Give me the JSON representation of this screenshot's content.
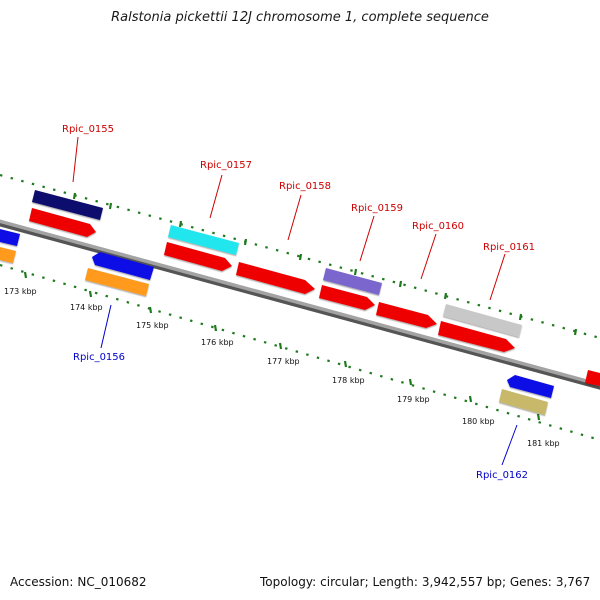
{
  "title": "Ralstonia pickettii 12J chromosome 1, complete sequence",
  "footer": {
    "accession_label": "Accession:",
    "accession": "NC_010682",
    "topology_label": "Topology:",
    "topology": "circular",
    "length_label": "Length:",
    "length": "3,942,557 bp",
    "genes_label": "Genes:",
    "genes": "3,767"
  },
  "scale_ticks": [
    "173 kbp",
    "174 kbp",
    "175 kbp",
    "176 kbp",
    "177 kbp",
    "178 kbp",
    "179 kbp",
    "180 kbp",
    "181 kbp"
  ],
  "gene_labels": [
    {
      "text": "Rpic_0155",
      "color": "#cc0000"
    },
    {
      "text": "Rpic_0156",
      "color": "#0000cc"
    },
    {
      "text": "Rpic_0157",
      "color": "#cc0000"
    },
    {
      "text": "Rpic_0158",
      "color": "#cc0000"
    },
    {
      "text": "Rpic_0159",
      "color": "#cc0000"
    },
    {
      "text": "Rpic_0160",
      "color": "#cc0000"
    },
    {
      "text": "Rpic_0161",
      "color": "#cc0000"
    },
    {
      "text": "Rpic_0162",
      "color": "#0000cc"
    }
  ],
  "colors": {
    "backbone": "#8a8a8a",
    "dotted_track": "#1f7a1f",
    "cds": "#ee0000",
    "navy": "#0a0a6e",
    "blue": "#0a0ae6",
    "orange": "#ff9a1a",
    "cyan": "#22e6ee",
    "slate": "#7a66cc",
    "silver": "#c8c8c8",
    "khaki": "#c8b86a"
  }
}
